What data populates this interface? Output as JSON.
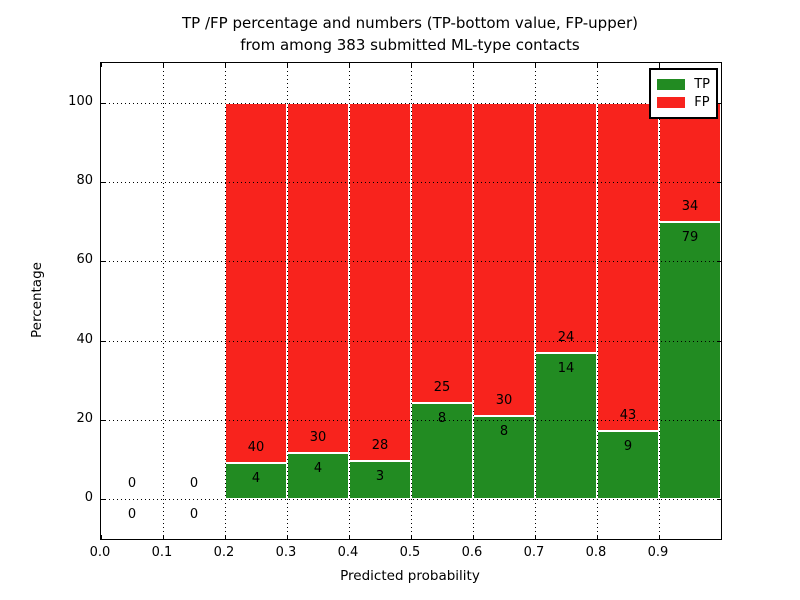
{
  "chart_data": {
    "type": "bar",
    "stacked": true,
    "title": "TP /FP percentage and numbers (TP-bottom value, FP-upper) from among 383 submitted ML-type contacts",
    "title_line1": "TP /FP percentage and numbers (TP-bottom value, FP-upper)",
    "title_line2": "from among 383 submitted ML-type contacts",
    "xlabel": "Predicted probability",
    "ylabel": "Percentage",
    "xlim": [
      0.0,
      1.0
    ],
    "ylim": [
      -10,
      110
    ],
    "bin_width": 0.1,
    "total_contacts": 383,
    "grid": "dotted",
    "legend_position": "upper right",
    "xticks": [
      0.0,
      0.1,
      0.2,
      0.3,
      0.4,
      0.5,
      0.6,
      0.7,
      0.8,
      0.9
    ],
    "xtick_labels": [
      "0.0",
      "0.1",
      "0.2",
      "0.3",
      "0.4",
      "0.5",
      "0.6",
      "0.7",
      "0.8",
      "0.9"
    ],
    "yticks": [
      0,
      20,
      40,
      60,
      80,
      100
    ],
    "ytick_labels": [
      "0",
      "20",
      "40",
      "60",
      "80",
      "100"
    ],
    "series": [
      {
        "name": "TP",
        "color": "#228b22"
      },
      {
        "name": "FP",
        "color": "#f8231d"
      }
    ],
    "bins": [
      {
        "x0": 0.0,
        "tp": 0,
        "fp": 0,
        "tp_percent": null
      },
      {
        "x0": 0.1,
        "tp": 0,
        "fp": 0,
        "tp_percent": null
      },
      {
        "x0": 0.2,
        "tp": 4,
        "fp": 40,
        "tp_percent": 9.09
      },
      {
        "x0": 0.3,
        "tp": 4,
        "fp": 30,
        "tp_percent": 11.76
      },
      {
        "x0": 0.4,
        "tp": 3,
        "fp": 28,
        "tp_percent": 9.68
      },
      {
        "x0": 0.5,
        "tp": 8,
        "fp": 25,
        "tp_percent": 24.24
      },
      {
        "x0": 0.6,
        "tp": 8,
        "fp": 30,
        "tp_percent": 21.05
      },
      {
        "x0": 0.7,
        "tp": 14,
        "fp": 24,
        "tp_percent": 36.84
      },
      {
        "x0": 0.8,
        "tp": 9,
        "fp": 43,
        "tp_percent": 17.31
      },
      {
        "x0": 0.9,
        "tp": 79,
        "fp": 34,
        "tp_percent": 69.91
      }
    ]
  }
}
